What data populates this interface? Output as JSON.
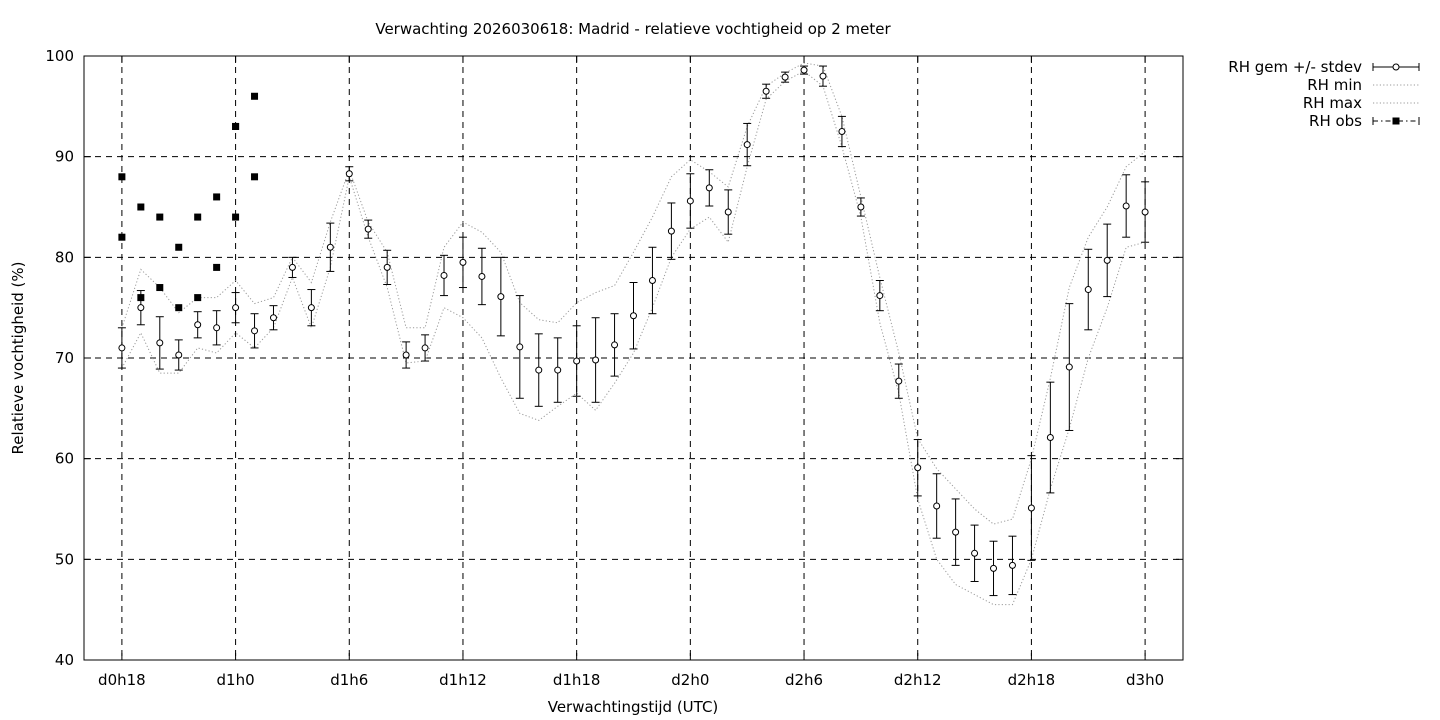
{
  "chart_data": {
    "type": "line",
    "title": "Verwachting 2026030618: Madrid - relatieve vochtigheid op 2 meter",
    "xlabel": "Verwachtingstijd (UTC)",
    "ylabel": "Relatieve vochtigheid (%)",
    "xlim": [
      -2,
      56
    ],
    "ylim": [
      40,
      100
    ],
    "x_unit_note": "hours after d0h18",
    "x_ticks": [
      {
        "x": 0,
        "label": "d0h18"
      },
      {
        "x": 6,
        "label": "d1h0"
      },
      {
        "x": 12,
        "label": "d1h6"
      },
      {
        "x": 18,
        "label": "d1h12"
      },
      {
        "x": 24,
        "label": "d1h18"
      },
      {
        "x": 30,
        "label": "d2h0"
      },
      {
        "x": 36,
        "label": "d2h6"
      },
      {
        "x": 42,
        "label": "d2h12"
      },
      {
        "x": 48,
        "label": "d2h18"
      },
      {
        "x": 54,
        "label": "d3h0"
      }
    ],
    "y_ticks": [
      40,
      50,
      60,
      70,
      80,
      90,
      100
    ],
    "grid": true,
    "legend_position": "outside-top-right",
    "series": [
      {
        "name": "RH gem +/- stdev",
        "style": "errorbars",
        "x": [
          0,
          1,
          2,
          3,
          4,
          5,
          6,
          7,
          8,
          9,
          10,
          11,
          12,
          13,
          14,
          15,
          16,
          17,
          18,
          19,
          20,
          21,
          22,
          23,
          24,
          25,
          26,
          27,
          28,
          29,
          30,
          31,
          32,
          33,
          34,
          35,
          36,
          37,
          38,
          39,
          40,
          41,
          42,
          43,
          44,
          45,
          46,
          47,
          48,
          49,
          50,
          51,
          52,
          53,
          54
        ],
        "y": [
          71,
          75,
          71.5,
          70.3,
          73.3,
          73,
          75,
          72.7,
          74,
          79,
          75,
          81,
          88.3,
          82.8,
          79,
          70.3,
          71,
          78.2,
          79.5,
          78.1,
          76.1,
          71.1,
          68.8,
          68.8,
          69.7,
          69.8,
          71.3,
          74.2,
          77.7,
          82.6,
          85.6,
          86.9,
          84.5,
          91.2,
          96.5,
          97.9,
          98.6,
          98,
          92.5,
          85,
          76.2,
          67.7,
          59.1,
          55.3,
          52.7,
          50.6,
          49.1,
          49.4,
          55.1,
          62.1,
          69.1,
          76.8,
          79.7,
          85.1,
          84.5
        ],
        "err": [
          2,
          1.7,
          2.6,
          1.5,
          1.3,
          1.7,
          1.5,
          1.7,
          1.2,
          1,
          1.8,
          2.4,
          0.7,
          0.9,
          1.7,
          1.3,
          1.3,
          2,
          2.5,
          2.8,
          3.9,
          5.1,
          3.6,
          3.2,
          3.5,
          4.2,
          3.1,
          3.3,
          3.3,
          2.8,
          2.7,
          1.8,
          2.2,
          2.1,
          0.7,
          0.5,
          0.4,
          1,
          1.5,
          0.9,
          1.5,
          1.7,
          2.8,
          3.2,
          3.3,
          2.8,
          2.7,
          2.9,
          5.2,
          5.5,
          6.3,
          4,
          3.6,
          3.1,
          3
        ]
      },
      {
        "name": "RH min",
        "style": "dotted",
        "x": [
          0,
          1,
          2,
          3,
          4,
          5,
          6,
          7,
          8,
          9,
          10,
          11,
          12,
          13,
          14,
          15,
          16,
          17,
          18,
          19,
          20,
          21,
          22,
          23,
          24,
          25,
          26,
          27,
          28,
          29,
          30,
          31,
          32,
          33,
          34,
          35,
          36,
          37,
          38,
          39,
          40,
          41,
          42,
          43,
          44,
          45,
          46,
          47,
          48,
          49,
          50,
          51,
          52,
          53,
          54
        ],
        "y": [
          69,
          72.5,
          68.5,
          68.5,
          71,
          70.5,
          72.5,
          71,
          73,
          78,
          73,
          79,
          88,
          82,
          77,
          69.5,
          69.7,
          75,
          74,
          72,
          68,
          64.5,
          63.8,
          65.2,
          66.5,
          64.8,
          67.5,
          70.5,
          75,
          80,
          82.8,
          84,
          81.5,
          89,
          95.7,
          97.5,
          98.5,
          97,
          91,
          84,
          73.5,
          66.5,
          56,
          50,
          47.5,
          46.5,
          45.5,
          45.5,
          50,
          57,
          63,
          70,
          75,
          81,
          81.5
        ]
      },
      {
        "name": "RH max",
        "style": "dotted",
        "x": [
          0,
          1,
          2,
          3,
          4,
          5,
          6,
          7,
          8,
          9,
          10,
          11,
          12,
          13,
          14,
          15,
          16,
          17,
          18,
          19,
          20,
          21,
          22,
          23,
          24,
          25,
          26,
          27,
          28,
          29,
          30,
          31,
          32,
          33,
          34,
          35,
          36,
          37,
          38,
          39,
          40,
          41,
          42,
          43,
          44,
          45,
          46,
          47,
          48,
          49,
          50,
          51,
          52,
          53,
          54
        ],
        "y": [
          73,
          78.8,
          77,
          74.5,
          76,
          76,
          77.7,
          75.4,
          76,
          80,
          77.5,
          83.5,
          88.7,
          83.5,
          80.5,
          73,
          73,
          81,
          83.5,
          82.5,
          80.5,
          75.5,
          73.8,
          73.5,
          75.5,
          76.5,
          77.2,
          80.5,
          84,
          88,
          89.7,
          88.5,
          87,
          93,
          97,
          98.3,
          99.3,
          99,
          94,
          86,
          78,
          70.5,
          62,
          59,
          57,
          55,
          53.5,
          54,
          60,
          68,
          77,
          82,
          85,
          89,
          90.5
        ]
      },
      {
        "name": "RH obs",
        "style": "points",
        "x": [
          0,
          0,
          1,
          1,
          2,
          2,
          3,
          3,
          4,
          4,
          5,
          5,
          6,
          6,
          6,
          7,
          7
        ],
        "y": [
          82,
          88,
          76,
          85,
          77,
          84,
          75,
          81,
          76,
          84,
          79,
          86,
          84,
          93,
          93,
          88,
          96
        ]
      }
    ]
  }
}
